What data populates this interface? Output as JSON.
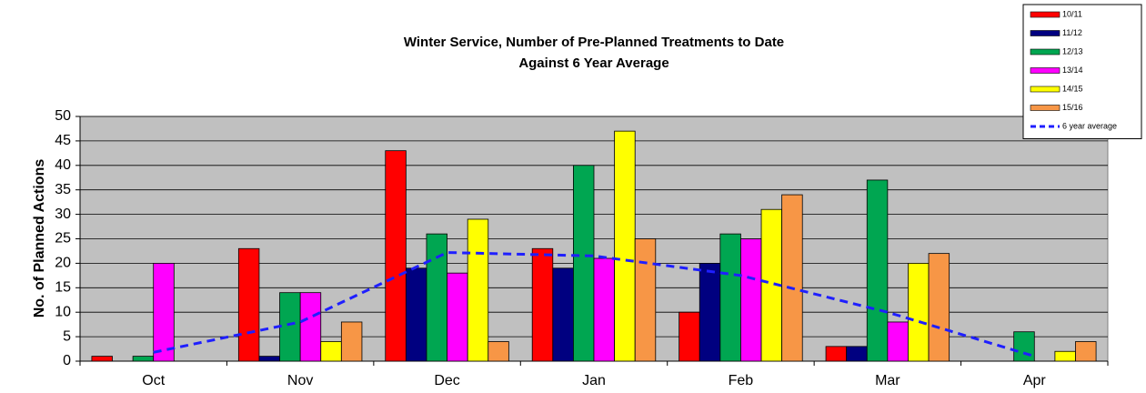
{
  "chart_data": {
    "type": "bar",
    "title": [
      "Winter Service, Number of Pre-Planned Treatments to Date",
      "Against 6 Year Average"
    ],
    "y_label": "No. of Planned Actions",
    "categories": [
      "Oct",
      "Nov",
      "Dec",
      "Jan",
      "Feb",
      "Mar",
      "Apr"
    ],
    "series": [
      {
        "name": "10/11",
        "color": "#ff0000",
        "values": [
          1,
          23,
          43,
          23,
          10,
          3,
          0
        ]
      },
      {
        "name": "11/12",
        "color": "#000080",
        "values": [
          0,
          1,
          19,
          19,
          20,
          3,
          0
        ]
      },
      {
        "name": "12/13",
        "color": "#00a651",
        "values": [
          1,
          14,
          26,
          40,
          26,
          37,
          6
        ]
      },
      {
        "name": "13/14",
        "color": "#ff00ff",
        "values": [
          20,
          14,
          18,
          21,
          25,
          8,
          0
        ]
      },
      {
        "name": "14/15",
        "color": "#ffff00",
        "values": [
          0,
          4,
          29,
          47,
          31,
          20,
          2
        ]
      },
      {
        "name": "15/16",
        "color": "#f79646",
        "values": [
          0,
          8,
          4,
          25,
          34,
          22,
          4
        ]
      },
      {
        "name": "6 year average",
        "color": "#1f1fff",
        "type": "line",
        "dashed": true,
        "values": [
          1.8,
          8,
          22.2,
          21.5,
          17.5,
          10,
          1
        ]
      }
    ],
    "ylim": [
      0,
      50
    ],
    "yticks": [
      0,
      5,
      10,
      15,
      20,
      25,
      30,
      35,
      40,
      45,
      50
    ],
    "grid": true,
    "legend": "top-right",
    "plot_background": "#c0c0c0"
  }
}
